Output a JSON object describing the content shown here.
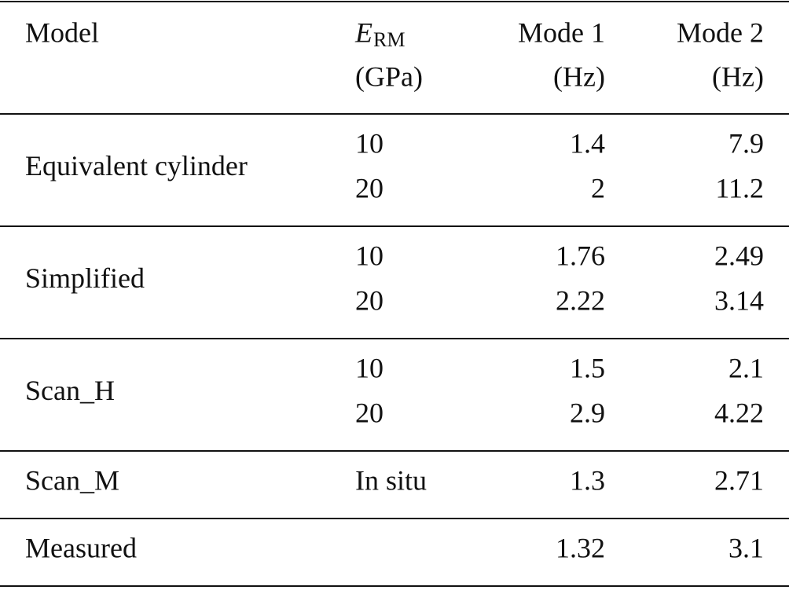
{
  "header": {
    "model": "Model",
    "e_symbol": "E",
    "e_subscript": "RM",
    "e_unit": "(GPa)",
    "mode1": "Mode 1",
    "mode1_unit": "(Hz)",
    "mode2": "Mode 2",
    "mode2_unit": "(Hz)"
  },
  "groups": [
    {
      "model": "Equivalent cylinder",
      "rows": [
        [
          "10",
          "1.4",
          "7.9"
        ],
        [
          "20",
          "2",
          "11.2"
        ]
      ]
    },
    {
      "model": "Simplified",
      "rows": [
        [
          "10",
          "1.76",
          "2.49"
        ],
        [
          "20",
          "2.22",
          "3.14"
        ]
      ]
    },
    {
      "model": "Scan_H",
      "rows": [
        [
          "10",
          "1.5",
          "2.1"
        ],
        [
          "20",
          "2.9",
          "4.22"
        ]
      ]
    },
    {
      "model": "Scan_M",
      "rows": [
        [
          "In situ",
          "1.3",
          "2.71"
        ]
      ]
    },
    {
      "model": "Measured",
      "rows": [
        [
          null,
          "1.32",
          "3.1"
        ]
      ]
    }
  ]
}
